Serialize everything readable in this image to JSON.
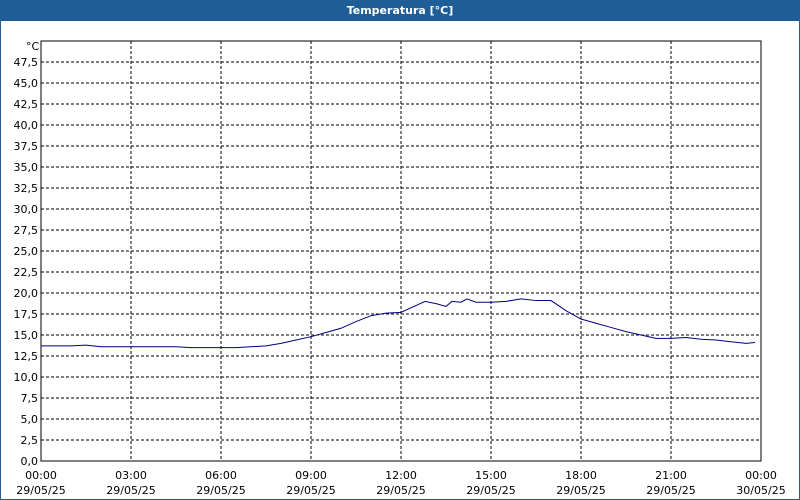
{
  "chart_data": {
    "type": "line",
    "title": "Temperatura [°C]",
    "y_unit": "°C",
    "x": [
      0,
      0.5,
      1,
      1.5,
      2,
      2.5,
      3,
      3.5,
      4,
      4.5,
      5,
      5.5,
      6,
      6.5,
      7,
      7.5,
      8,
      8.5,
      9,
      9.5,
      10,
      10.5,
      11,
      11.5,
      12,
      12.5,
      12.8,
      13.2,
      13.5,
      13.7,
      14,
      14.2,
      14.5,
      15,
      15.5,
      16,
      16.5,
      17,
      17.5,
      18,
      18.5,
      19,
      19.5,
      20,
      20.5,
      21,
      21.5,
      22,
      22.5,
      23,
      23.5,
      23.8
    ],
    "series": [
      {
        "name": "Temperatura",
        "color": "#000080",
        "values": [
          13.7,
          13.7,
          13.7,
          13.8,
          13.6,
          13.6,
          13.6,
          13.6,
          13.6,
          13.6,
          13.5,
          13.5,
          13.5,
          13.5,
          13.6,
          13.7,
          14.0,
          14.4,
          14.8,
          15.3,
          15.8,
          16.6,
          17.3,
          17.6,
          17.7,
          18.5,
          19.0,
          18.7,
          18.4,
          19.0,
          18.9,
          19.3,
          18.9,
          18.9,
          19.0,
          19.3,
          19.1,
          19.1,
          17.9,
          16.9,
          16.4,
          15.9,
          15.4,
          15.0,
          14.6,
          14.6,
          14.7,
          14.5,
          14.4,
          14.2,
          14.0,
          14.1
        ]
      }
    ],
    "ylim": [
      0,
      50
    ],
    "yticks": [
      {
        "value": 0,
        "label": "0,0"
      },
      {
        "value": 2.5,
        "label": "2,5"
      },
      {
        "value": 5,
        "label": "5,0"
      },
      {
        "value": 7.5,
        "label": "7,5"
      },
      {
        "value": 10,
        "label": "10,0"
      },
      {
        "value": 12.5,
        "label": "12,5"
      },
      {
        "value": 15,
        "label": "15,0"
      },
      {
        "value": 17.5,
        "label": "17,5"
      },
      {
        "value": 20,
        "label": "20,0"
      },
      {
        "value": 22.5,
        "label": "22,5"
      },
      {
        "value": 25,
        "label": "25,0"
      },
      {
        "value": 27.5,
        "label": "27,5"
      },
      {
        "value": 30,
        "label": "30,0"
      },
      {
        "value": 32.5,
        "label": "32,5"
      },
      {
        "value": 35,
        "label": "35,0"
      },
      {
        "value": 37.5,
        "label": "37,5"
      },
      {
        "value": 40,
        "label": "40,0"
      },
      {
        "value": 42.5,
        "label": "42,5"
      },
      {
        "value": 45,
        "label": "45,0"
      },
      {
        "value": 47.5,
        "label": "47,5"
      }
    ],
    "xlim": [
      0,
      24
    ],
    "xticks": [
      {
        "value": 0,
        "label": "00:00",
        "date": "29/05/25"
      },
      {
        "value": 3,
        "label": "03:00",
        "date": "29/05/25"
      },
      {
        "value": 6,
        "label": "06:00",
        "date": "29/05/25"
      },
      {
        "value": 9,
        "label": "09:00",
        "date": "29/05/25"
      },
      {
        "value": 12,
        "label": "12:00",
        "date": "29/05/25"
      },
      {
        "value": 15,
        "label": "15:00",
        "date": "29/05/25"
      },
      {
        "value": 18,
        "label": "18:00",
        "date": "29/05/25"
      },
      {
        "value": 21,
        "label": "21:00",
        "date": "29/05/25"
      },
      {
        "value": 24,
        "label": "00:00",
        "date": "30/05/25"
      }
    ],
    "grid": true
  }
}
